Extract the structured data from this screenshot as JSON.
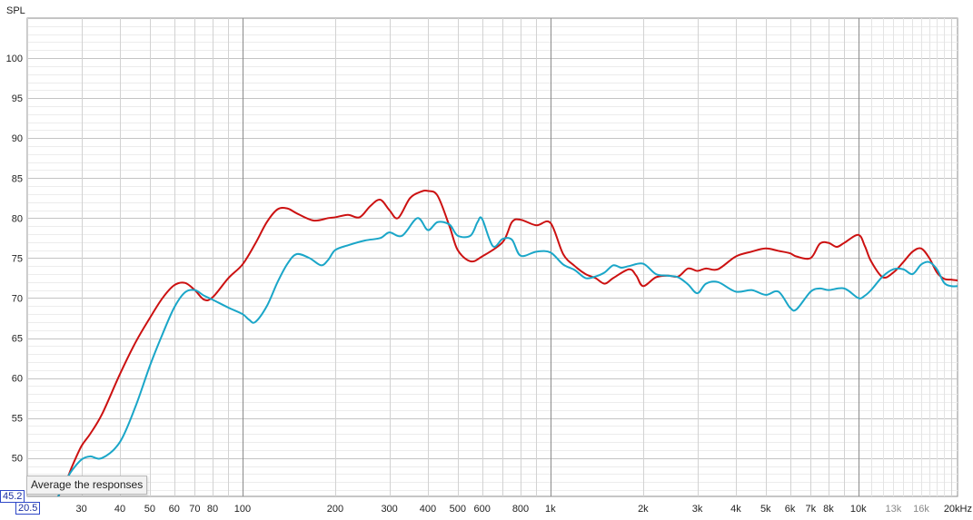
{
  "chart_data": {
    "type": "line",
    "ylabel": "SPL",
    "x_scale": "log",
    "xlim": [
      20,
      21000
    ],
    "ylim": [
      45.2,
      105
    ],
    "grid": true,
    "y_ticks": [
      50,
      55,
      60,
      65,
      70,
      75,
      80,
      85,
      90,
      95,
      100
    ],
    "x_ticks": [
      {
        "value": 30,
        "label": "30"
      },
      {
        "value": 40,
        "label": "40"
      },
      {
        "value": 50,
        "label": "50"
      },
      {
        "value": 60,
        "label": "60"
      },
      {
        "value": 70,
        "label": "70"
      },
      {
        "value": 80,
        "label": "80"
      },
      {
        "value": 100,
        "label": "100"
      },
      {
        "value": 200,
        "label": "200"
      },
      {
        "value": 300,
        "label": "300"
      },
      {
        "value": 400,
        "label": "400"
      },
      {
        "value": 500,
        "label": "500"
      },
      {
        "value": 600,
        "label": "600"
      },
      {
        "value": 800,
        "label": "800"
      },
      {
        "value": 1000,
        "label": "1k"
      },
      {
        "value": 2000,
        "label": "2k"
      },
      {
        "value": 3000,
        "label": "3k"
      },
      {
        "value": 4000,
        "label": "4k"
      },
      {
        "value": 5000,
        "label": "5k"
      },
      {
        "value": 6000,
        "label": "6k"
      },
      {
        "value": 7000,
        "label": "7k"
      },
      {
        "value": 8000,
        "label": "8k"
      },
      {
        "value": 10000,
        "label": "10k"
      },
      {
        "value": 13000,
        "label": "13k",
        "minor": true
      },
      {
        "value": 16000,
        "label": "16k",
        "minor": true
      },
      {
        "value": 20000,
        "label": "20kHz"
      }
    ],
    "series": [
      {
        "color": "#cc1111",
        "x": [
          20,
          25,
          27,
          28,
          30,
          32,
          35,
          40,
          45,
          50,
          55,
          60,
          65,
          70,
          75,
          80,
          90,
          100,
          110,
          120,
          130,
          140,
          150,
          170,
          190,
          200,
          220,
          240,
          260,
          280,
          300,
          320,
          350,
          380,
          400,
          430,
          470,
          500,
          550,
          600,
          700,
          750,
          800,
          900,
          1000,
          1100,
          1200,
          1300,
          1400,
          1500,
          1600,
          1800,
          1900,
          2000,
          2200,
          2400,
          2600,
          2800,
          3000,
          3200,
          3500,
          4000,
          4500,
          5000,
          5500,
          6000,
          6300,
          7000,
          7500,
          8000,
          8500,
          9000,
          10000,
          10500,
          11000,
          12000,
          13000,
          14000,
          15000,
          16000,
          17000,
          18000,
          19000,
          20000,
          21000
        ],
        "values": [
          40,
          45,
          47.5,
          49,
          51.5,
          53,
          55.5,
          60.5,
          64.5,
          67.5,
          70,
          71.6,
          71.9,
          71.0,
          69.8,
          70.1,
          72.5,
          74.2,
          76.8,
          79.5,
          81.1,
          81.2,
          80.6,
          79.7,
          80.0,
          80.1,
          80.4,
          80.1,
          81.5,
          82.3,
          81.0,
          80.0,
          82.5,
          83.3,
          83.4,
          82.8,
          79.0,
          76.0,
          74.6,
          75.2,
          77.0,
          79.5,
          79.8,
          79.1,
          79.4,
          75.5,
          74.0,
          73.0,
          72.5,
          71.8,
          72.5,
          73.6,
          72.8,
          71.5,
          72.6,
          72.8,
          72.7,
          73.7,
          73.4,
          73.7,
          73.6,
          75.2,
          75.8,
          76.2,
          75.9,
          75.6,
          75.2,
          75.0,
          76.8,
          76.9,
          76.4,
          76.9,
          77.9,
          76.5,
          74.6,
          72.6,
          73.2,
          74.5,
          75.8,
          76.2,
          75.0,
          73.2,
          72.4,
          72.3,
          72.2
        ]
      },
      {
        "color": "#1aa6c8",
        "x": [
          20,
          25,
          27,
          28,
          30,
          32,
          35,
          40,
          45,
          50,
          55,
          60,
          65,
          70,
          75,
          80,
          90,
          100,
          105,
          110,
          120,
          130,
          140,
          150,
          165,
          180,
          190,
          200,
          220,
          250,
          280,
          300,
          330,
          370,
          400,
          430,
          470,
          500,
          550,
          580,
          600,
          650,
          700,
          750,
          800,
          900,
          1000,
          1100,
          1200,
          1300,
          1400,
          1500,
          1600,
          1700,
          1800,
          2000,
          2200,
          2400,
          2600,
          2800,
          3000,
          3200,
          3500,
          4000,
          4500,
          5000,
          5500,
          6000,
          6300,
          7000,
          7500,
          8000,
          9000,
          10000,
          10500,
          11000,
          12000,
          13000,
          14000,
          15000,
          16000,
          17000,
          18000,
          19000,
          20000,
          21000
        ],
        "values": [
          40,
          45,
          47.5,
          48.5,
          49.8,
          50.2,
          50.0,
          52.0,
          56.5,
          61.5,
          65.5,
          68.8,
          70.7,
          71.0,
          70.3,
          69.8,
          68.8,
          68.0,
          67.3,
          67.0,
          69.0,
          72.0,
          74.3,
          75.5,
          75.0,
          74.1,
          74.8,
          76.0,
          76.6,
          77.2,
          77.5,
          78.2,
          77.8,
          80.0,
          78.5,
          79.5,
          79.2,
          77.8,
          77.8,
          79.5,
          79.9,
          76.5,
          77.4,
          77.3,
          75.3,
          75.8,
          75.7,
          74.2,
          73.5,
          72.5,
          72.7,
          73.2,
          74.1,
          73.8,
          74.0,
          74.3,
          73.0,
          72.8,
          72.6,
          71.7,
          70.6,
          71.8,
          72.0,
          70.8,
          71.0,
          70.4,
          70.8,
          68.8,
          68.6,
          70.8,
          71.2,
          71.0,
          71.2,
          70.0,
          70.3,
          71.0,
          72.7,
          73.6,
          73.6,
          73.0,
          74.2,
          74.5,
          73.6,
          71.9,
          71.5,
          71.5
        ]
      }
    ]
  },
  "readouts": {
    "y_value": "45.2",
    "x_value": "20.5"
  },
  "tooltip": "Average the responses"
}
